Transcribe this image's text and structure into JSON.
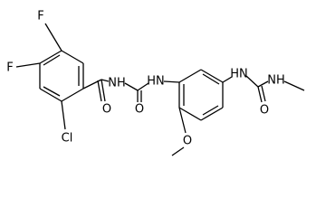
{
  "atoms": [
    {
      "label": "F"
    },
    {
      "label": "F"
    },
    {
      "label": "Cl"
    },
    {
      "label": "O"
    },
    {
      "label": "NH"
    },
    {
      "label": "HN"
    },
    {
      "label": "O"
    },
    {
      "label": "O"
    },
    {
      "label": "HN"
    },
    {
      "label": "O"
    },
    {
      "label": "NH"
    }
  ]
}
